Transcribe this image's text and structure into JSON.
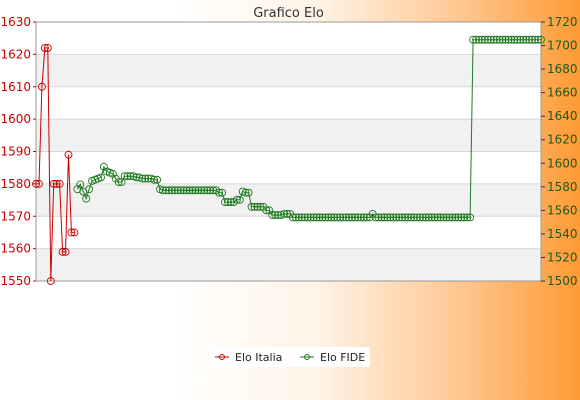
{
  "chart_data": {
    "type": "line",
    "title": "Grafico Elo",
    "xlabel": "",
    "ylabel": "",
    "left_axis": {
      "ylim": [
        1550,
        1630
      ],
      "ticks": [
        1550,
        1560,
        1570,
        1580,
        1590,
        1600,
        1610,
        1620,
        1630
      ]
    },
    "right_axis": {
      "ylim": [
        1500,
        1720
      ],
      "ticks": [
        1500,
        1520,
        1540,
        1560,
        1580,
        1600,
        1620,
        1640,
        1660,
        1680,
        1700,
        1720
      ]
    },
    "grid": true,
    "legend_position": "bottom-center",
    "series": [
      {
        "name": "Elo Italia",
        "axis": "left",
        "color": "#cc0000",
        "points": [
          [
            0,
            1580
          ],
          [
            1,
            1580
          ],
          [
            2,
            1610
          ],
          [
            3,
            1622
          ],
          [
            4,
            1622
          ],
          [
            5,
            1550
          ],
          [
            6,
            1580
          ],
          [
            7,
            1580
          ],
          [
            8,
            1580
          ],
          [
            9,
            1559
          ],
          [
            10,
            1559
          ],
          [
            11,
            1589
          ],
          [
            12,
            1565
          ],
          [
            13,
            1565
          ]
        ]
      },
      {
        "name": "Elo FIDE",
        "axis": "right",
        "color": "#1e7a1e",
        "points": [
          [
            14,
            1578
          ],
          [
            15,
            1582
          ],
          [
            16,
            1576
          ],
          [
            17,
            1570
          ],
          [
            18,
            1578
          ],
          [
            19,
            1585
          ],
          [
            20,
            1586
          ],
          [
            21,
            1587
          ],
          [
            22,
            1588
          ],
          [
            23,
            1597
          ],
          [
            24,
            1593
          ],
          [
            25,
            1592
          ],
          [
            26,
            1591
          ],
          [
            27,
            1587
          ],
          [
            28,
            1584
          ],
          [
            29,
            1584
          ],
          [
            30,
            1589
          ],
          [
            31,
            1589
          ],
          [
            32,
            1589
          ],
          [
            33,
            1589
          ],
          [
            34,
            1588
          ],
          [
            35,
            1588
          ],
          [
            36,
            1587
          ],
          [
            37,
            1587
          ],
          [
            38,
            1587
          ],
          [
            39,
            1587
          ],
          [
            40,
            1586
          ],
          [
            41,
            1586
          ],
          [
            42,
            1578
          ],
          [
            43,
            1577
          ],
          [
            44,
            1577
          ],
          [
            45,
            1577
          ],
          [
            46,
            1577
          ],
          [
            47,
            1577
          ],
          [
            48,
            1577
          ],
          [
            49,
            1577
          ],
          [
            50,
            1577
          ],
          [
            51,
            1577
          ],
          [
            52,
            1577
          ],
          [
            53,
            1577
          ],
          [
            54,
            1577
          ],
          [
            55,
            1577
          ],
          [
            56,
            1577
          ],
          [
            57,
            1577
          ],
          [
            58,
            1577
          ],
          [
            59,
            1577
          ],
          [
            60,
            1577
          ],
          [
            61,
            1577
          ],
          [
            62,
            1575
          ],
          [
            63,
            1575
          ],
          [
            64,
            1567
          ],
          [
            65,
            1567
          ],
          [
            66,
            1567
          ],
          [
            67,
            1567
          ],
          [
            68,
            1569
          ],
          [
            69,
            1569
          ],
          [
            70,
            1576
          ],
          [
            71,
            1575
          ],
          [
            72,
            1575
          ],
          [
            73,
            1563
          ],
          [
            74,
            1563
          ],
          [
            75,
            1563
          ],
          [
            76,
            1563
          ],
          [
            77,
            1563
          ],
          [
            78,
            1560
          ],
          [
            79,
            1560
          ],
          [
            80,
            1556
          ],
          [
            81,
            1556
          ],
          [
            82,
            1556
          ],
          [
            83,
            1556
          ],
          [
            84,
            1557
          ],
          [
            85,
            1557
          ],
          [
            86,
            1557
          ],
          [
            87,
            1554
          ],
          [
            88,
            1554
          ],
          [
            89,
            1554
          ],
          [
            90,
            1554
          ],
          [
            91,
            1554
          ],
          [
            92,
            1554
          ],
          [
            93,
            1554
          ],
          [
            94,
            1554
          ],
          [
            95,
            1554
          ],
          [
            96,
            1554
          ],
          [
            97,
            1554
          ],
          [
            98,
            1554
          ],
          [
            99,
            1554
          ],
          [
            100,
            1554
          ],
          [
            101,
            1554
          ],
          [
            102,
            1554
          ],
          [
            103,
            1554
          ],
          [
            104,
            1554
          ],
          [
            105,
            1554
          ],
          [
            106,
            1554
          ],
          [
            107,
            1554
          ],
          [
            108,
            1554
          ],
          [
            109,
            1554
          ],
          [
            110,
            1554
          ],
          [
            111,
            1554
          ],
          [
            112,
            1554
          ],
          [
            113,
            1554
          ],
          [
            114,
            1557
          ],
          [
            115,
            1554
          ],
          [
            116,
            1554
          ],
          [
            117,
            1554
          ],
          [
            118,
            1554
          ],
          [
            119,
            1554
          ],
          [
            120,
            1554
          ],
          [
            121,
            1554
          ],
          [
            122,
            1554
          ],
          [
            123,
            1554
          ],
          [
            124,
            1554
          ],
          [
            125,
            1554
          ],
          [
            126,
            1554
          ],
          [
            127,
            1554
          ],
          [
            128,
            1554
          ],
          [
            129,
            1554
          ],
          [
            130,
            1554
          ],
          [
            131,
            1554
          ],
          [
            132,
            1554
          ],
          [
            133,
            1554
          ],
          [
            134,
            1554
          ],
          [
            135,
            1554
          ],
          [
            136,
            1554
          ],
          [
            137,
            1554
          ],
          [
            138,
            1554
          ],
          [
            139,
            1554
          ],
          [
            140,
            1554
          ],
          [
            141,
            1554
          ],
          [
            142,
            1554
          ],
          [
            143,
            1554
          ],
          [
            144,
            1554
          ],
          [
            145,
            1554
          ],
          [
            146,
            1554
          ],
          [
            147,
            1554
          ],
          [
            148,
            1705
          ],
          [
            149,
            1705
          ],
          [
            150,
            1705
          ],
          [
            151,
            1705
          ],
          [
            152,
            1705
          ],
          [
            153,
            1705
          ],
          [
            154,
            1705
          ],
          [
            155,
            1705
          ],
          [
            156,
            1705
          ],
          [
            157,
            1705
          ],
          [
            158,
            1705
          ],
          [
            159,
            1705
          ],
          [
            160,
            1705
          ],
          [
            161,
            1705
          ],
          [
            162,
            1705
          ],
          [
            163,
            1705
          ],
          [
            164,
            1705
          ],
          [
            165,
            1705
          ],
          [
            166,
            1705
          ],
          [
            167,
            1705
          ],
          [
            168,
            1705
          ],
          [
            169,
            1705
          ],
          [
            170,
            1705
          ],
          [
            171,
            1705
          ]
        ]
      }
    ],
    "x_range": [
      0,
      171
    ]
  },
  "legend": {
    "items": [
      {
        "label": "Elo Italia",
        "color": "#cc0000"
      },
      {
        "label": "Elo FIDE",
        "color": "#1e7a1e"
      }
    ]
  }
}
